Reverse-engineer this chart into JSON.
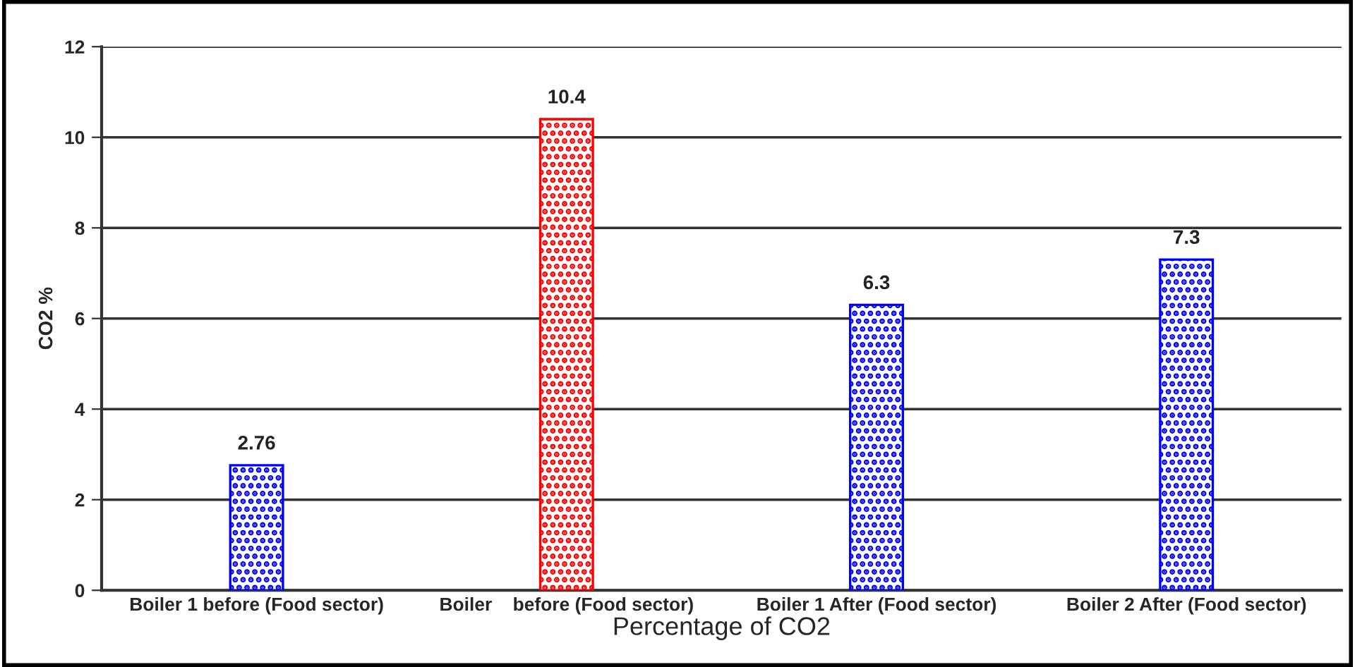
{
  "chart_data": {
    "type": "bar",
    "xlabel": "Percentage of CO2",
    "ylabel": "CO2 %",
    "categories": [
      "Boiler 1 before (Food sector)",
      "Boiler    before (Food sector)",
      "Boiler 1 After (Food sector)",
      "Boiler 2 After (Food sector)"
    ],
    "values": [
      2.76,
      10.4,
      6.3,
      7.3
    ],
    "colors": [
      "#0000ff",
      "#ff0000",
      "#0000ff",
      "#0000ff"
    ],
    "ylim": [
      0,
      12
    ],
    "yticks": [
      0,
      2,
      4,
      6,
      8,
      10,
      12
    ],
    "grid": "y",
    "data_labels": true
  }
}
